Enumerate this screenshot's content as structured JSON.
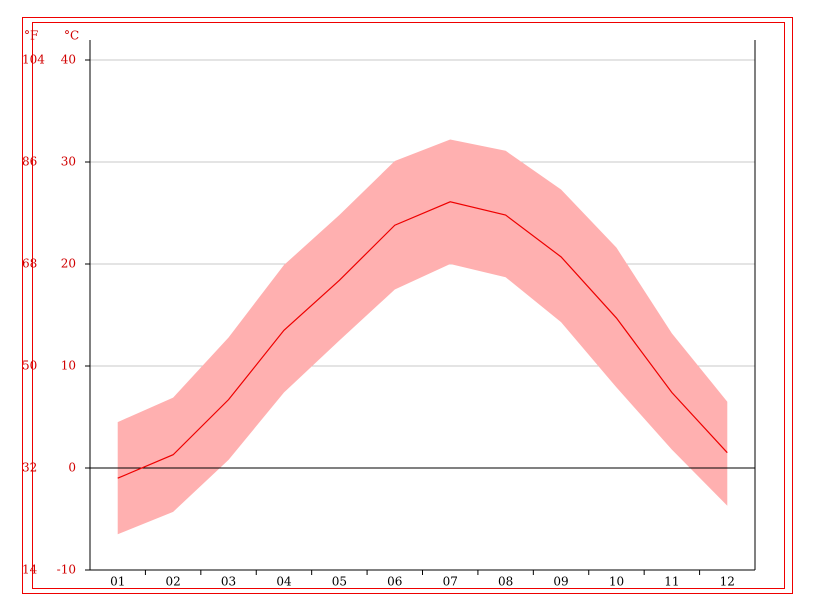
{
  "chart_data": {
    "type": "band-line",
    "ylabel": "°C",
    "y2label": "°F",
    "categories": [
      "01",
      "02",
      "03",
      "04",
      "05",
      "06",
      "07",
      "08",
      "09",
      "10",
      "11",
      "12"
    ],
    "series": [
      {
        "color": "#ee0000",
        "values": [
          -1.0,
          1.3,
          6.7,
          13.5,
          18.4,
          23.8,
          26.1,
          24.8,
          20.7,
          14.7,
          7.4,
          1.5
        ]
      }
    ],
    "band": {
      "color": "#ffb0b0",
      "high": [
        4.5,
        6.9,
        12.8,
        19.9,
        24.8,
        30.1,
        32.2,
        31.1,
        27.3,
        21.6,
        13.2,
        6.5
      ],
      "low": [
        -6.5,
        -4.3,
        0.8,
        7.4,
        12.5,
        17.5,
        20.0,
        18.7,
        14.3,
        7.9,
        1.8,
        -3.7
      ]
    },
    "ylim": [
      -10,
      40
    ],
    "yticks": [
      -10,
      0,
      10,
      20,
      30,
      40
    ],
    "y2lim": [
      14,
      104
    ],
    "y2ticks": [
      14,
      32,
      50,
      68,
      86,
      104
    ],
    "grid": true
  }
}
